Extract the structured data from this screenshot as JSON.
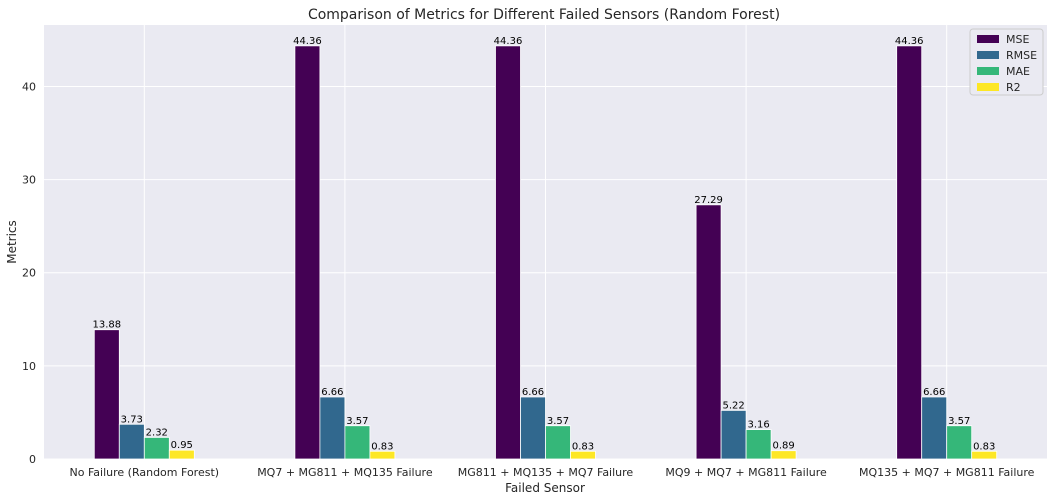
{
  "chart_data": {
    "type": "bar",
    "title": "Comparison of Metrics for Different Failed Sensors (Random Forest)",
    "xlabel": "Failed Sensor",
    "ylabel": "Metrics",
    "ylim": [
      0,
      46.6
    ],
    "yticks": [
      0,
      10,
      20,
      30,
      40
    ],
    "grid": true,
    "legend_position": "top-right",
    "categories": [
      "No Failure (Random Forest)",
      "MQ7 + MG811 + MQ135 Failure",
      "MG811 + MQ135 + MQ7 Failure",
      "MQ9 + MQ7 + MG811 Failure",
      "MQ135 + MQ7 + MG811 Failure"
    ],
    "series": [
      {
        "name": "MSE",
        "color": "#440154",
        "values": [
          13.88,
          44.36,
          44.36,
          27.29,
          44.36
        ],
        "labels": [
          "13.88",
          "44.36",
          "44.36",
          "27.29",
          "44.36"
        ]
      },
      {
        "name": "RMSE",
        "color": "#31688e",
        "values": [
          3.73,
          6.66,
          6.66,
          5.22,
          6.66
        ],
        "labels": [
          "3.73",
          "6.66",
          "6.66",
          "5.22",
          "6.66"
        ]
      },
      {
        "name": "MAE",
        "color": "#35b779",
        "values": [
          2.32,
          3.57,
          3.57,
          3.16,
          3.57
        ],
        "labels": [
          "2.32",
          "3.57",
          "3.57",
          "3.16",
          "3.57"
        ]
      },
      {
        "name": "R2",
        "color": "#fde725",
        "values": [
          0.95,
          0.83,
          0.83,
          0.89,
          0.83
        ],
        "labels": [
          "0.95",
          "0.83",
          "0.83",
          "0.89",
          "0.83"
        ]
      }
    ]
  }
}
